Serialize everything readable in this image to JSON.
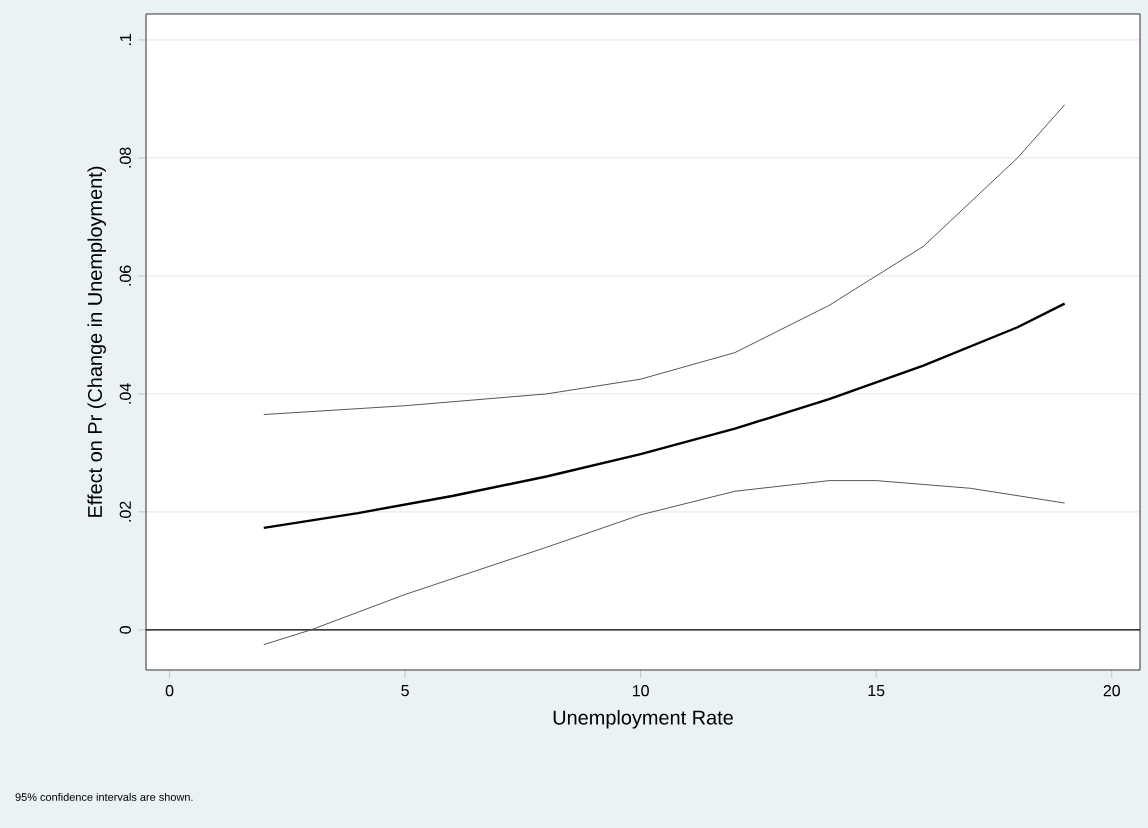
{
  "chart_data": {
    "type": "line",
    "xlabel": "Unemployment Rate",
    "ylabel": "Effect on Pr (Change in Unemployment)",
    "annotations": [
      "95% confidence intervals are shown."
    ],
    "xlim": [
      -0.5,
      20.6
    ],
    "ylim": [
      -0.0068,
      0.1044
    ],
    "xticks": [
      0,
      5,
      10,
      15,
      20
    ],
    "yticks": [
      0,
      {
        "value": 0.02,
        "label": ".02"
      },
      {
        "value": 0.04,
        "label": ".04"
      },
      {
        "value": 0.06,
        "label": ".06"
      },
      {
        "value": 0.08,
        "label": ".08"
      },
      {
        "value": 0.1,
        "label": ".1"
      }
    ],
    "grid": "y",
    "marker": "none",
    "line_style": "solid",
    "ref_lines": [
      {
        "axis": "y",
        "value": 0,
        "color": "#000000"
      }
    ],
    "series": [
      {
        "color": "#000000",
        "x": [
          2,
          4,
          6,
          8,
          10,
          12,
          14,
          16,
          18,
          19
        ],
        "values": [
          0.0173,
          0.0198,
          0.0227,
          0.026,
          0.0298,
          0.0341,
          0.0391,
          0.0448,
          0.0513,
          0.0553
        ]
      },
      {
        "color": "#555555",
        "x": [
          2,
          5,
          8,
          10,
          12,
          14,
          16,
          18,
          19
        ],
        "values": [
          0.0365,
          0.038,
          0.04,
          0.0425,
          0.047,
          0.055,
          0.065,
          0.08,
          0.089
        ]
      },
      {
        "color": "#555555",
        "x": [
          2,
          3,
          5,
          8,
          10,
          12,
          14,
          15,
          17,
          19
        ],
        "values": [
          -0.0025,
          0.0,
          0.006,
          0.014,
          0.0195,
          0.0235,
          0.0253,
          0.0253,
          0.024,
          0.0215
        ]
      }
    ]
  }
}
